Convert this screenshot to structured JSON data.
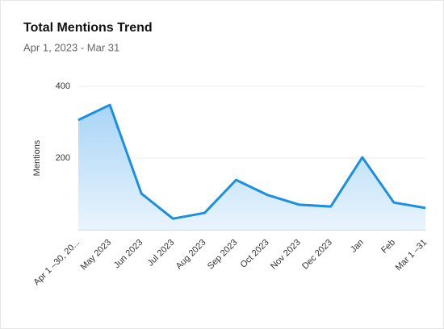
{
  "chart_data": {
    "type": "line",
    "title": "Total Mentions Trend",
    "subtitle": "Apr 1, 2023 - Mar 31",
    "y_label": "Mentions",
    "categories": [
      "Apr 1 –30, 20...",
      "May 2023",
      "Jun 2023",
      "Jul 2023",
      "Aug 2023",
      "Sep 2023",
      "Oct 2023",
      "Nov 2023",
      "Dec 2023",
      "Jan",
      "Feb",
      "Mar 1 –31"
    ],
    "series": [
      {
        "name": "Mentions",
        "color": "#1a8fe3",
        "values": [
          306,
          348,
          101,
          31,
          47,
          139,
          97,
          70,
          65,
          202,
          76,
          61
        ]
      }
    ],
    "ylim": [
      0,
      400
    ],
    "yticks": [
      200,
      400
    ],
    "grid": true,
    "area": true
  }
}
